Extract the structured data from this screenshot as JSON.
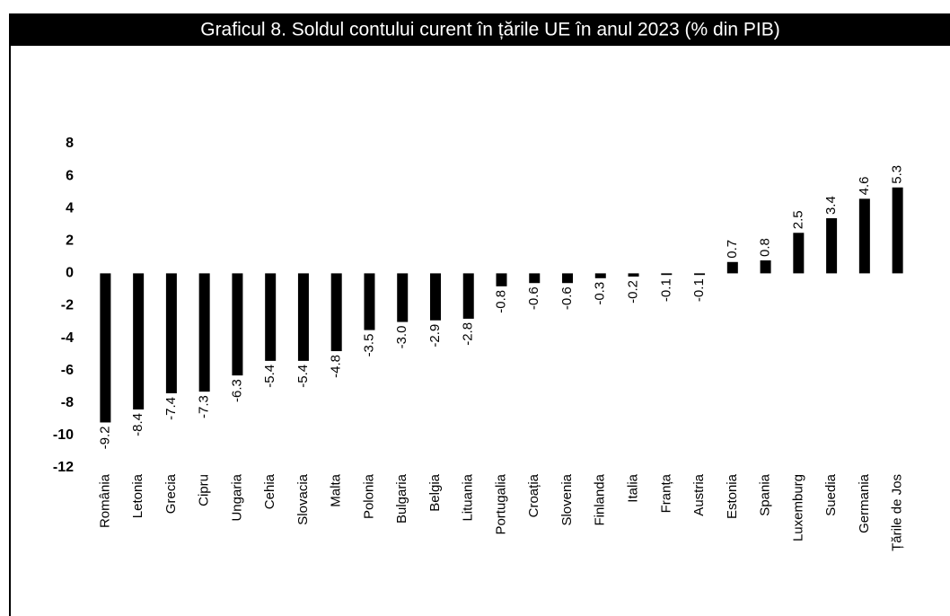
{
  "chart_data": {
    "type": "bar",
    "title": "Graficul 8. Soldul contului curent în țările UE în anul 2023 (% din PIB)",
    "categories": [
      "România",
      "Letonia",
      "Grecia",
      "Cipru",
      "Ungaria",
      "Cehia",
      "Slovacia",
      "Malta",
      "Polonia",
      "Bulgaria",
      "Belgia",
      "Lituania",
      "Portugalia",
      "Croația",
      "Slovenia",
      "Finlanda",
      "Italia",
      "Franța",
      "Austria",
      "Estonia",
      "Spania",
      "Luxemburg",
      "Suedia",
      "Germania",
      "Țările de Jos"
    ],
    "values": [
      -9.2,
      -8.4,
      -7.4,
      -7.3,
      -6.3,
      -5.4,
      -5.4,
      -4.8,
      -3.5,
      -3.0,
      -2.9,
      -2.8,
      -0.8,
      -0.6,
      -0.6,
      -0.3,
      -0.2,
      -0.1,
      -0.1,
      0.7,
      0.8,
      2.5,
      3.4,
      4.6,
      5.3
    ],
    "value_labels": [
      "-9.2",
      "-8.4",
      "-7.4",
      "-7.3",
      "-6.3",
      "-5.4",
      "-5.4",
      "-4.8",
      "-3.5",
      "-3.0",
      "-2.9",
      "-2.8",
      "-0.8",
      "-0.6",
      "-0.6",
      "-0.3",
      "-0.2",
      "-0.1",
      "-0.1",
      "0.7",
      "0.8",
      "2.5",
      "3.4",
      "4.6",
      "5.3"
    ],
    "color": "#000000",
    "ylim": [
      -12,
      8
    ],
    "yticks": [
      -12,
      -10,
      -8,
      -6,
      -4,
      -2,
      0,
      2,
      4,
      6,
      8
    ],
    "grid": false
  }
}
